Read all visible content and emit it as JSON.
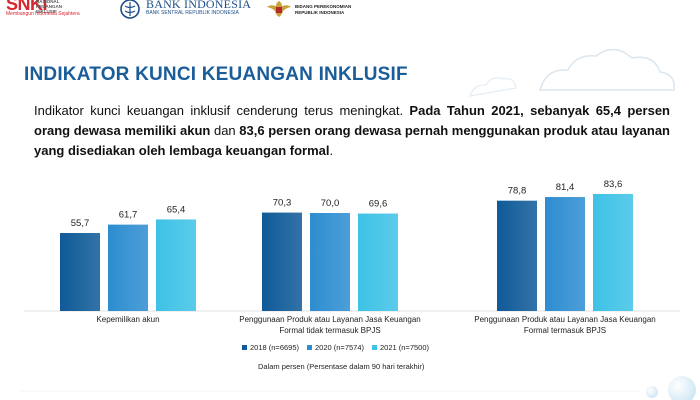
{
  "header": {
    "snki_logo_text": "SNKI",
    "snki_logo_sub": "NASIONAL KEUANGAN INKLUSIF",
    "snki_tagline": "Membangun Indonesia Sejahtera",
    "bi_name": "BANK INDONESIA",
    "bi_sub": "BANK SENTRAL REPUBLIK INDONESIA",
    "gov_line1": "BIDANG PEREKONOMIAN",
    "gov_line2": "REPUBLIK INDONESIA"
  },
  "page": {
    "title": "INDIKATOR KUNCI KEUANGAN INKLUSIF",
    "intro_plain": "Indikator kunci keuangan inklusif cenderung terus meningkat. ",
    "intro_bold1": "Pada Tahun 2021, sebanyak 65,4 persen orang dewasa memiliki akun",
    "intro_mid": " dan ",
    "intro_bold2": "83,6 persen orang dewasa pernah menggunakan produk atau layanan yang disediakan oleh lembaga keuangan formal",
    "intro_end": "."
  },
  "chart_data": {
    "type": "bar",
    "categories": [
      "Kepemilikan akun",
      "Penggunaan Produk atau Layanan Jasa Keuangan Formal tidak termasuk BPJS",
      "Penggunaan Produk atau Layanan Jasa Keuangan Formal termasuk BPJS"
    ],
    "series": [
      {
        "name": "2018 (n=6695)",
        "values": [
          55.7,
          70.3,
          78.8
        ],
        "labels": [
          "55,7",
          "70,3",
          "78,8"
        ],
        "color": "#0f5a98"
      },
      {
        "name": "2020 (n=7574)",
        "values": [
          61.7,
          70.0,
          81.4
        ],
        "labels": [
          "61,7",
          "70,0",
          "81,4"
        ],
        "color": "#2d8dd0"
      },
      {
        "name": "2021 (n=7500)",
        "values": [
          65.4,
          69.6,
          83.6
        ],
        "labels": [
          "65,4",
          "69,6",
          "83,6"
        ],
        "color": "#3ec2e6"
      }
    ],
    "ylim": [
      0,
      100
    ],
    "grid": false,
    "legend_position": "bottom",
    "footnote": "Dalam persen (Persentase dalam 90 hari terakhir)"
  },
  "colors": {
    "title": "#1a5d99",
    "accent_red": "#d7262e",
    "bi_blue": "#1d4e89"
  }
}
